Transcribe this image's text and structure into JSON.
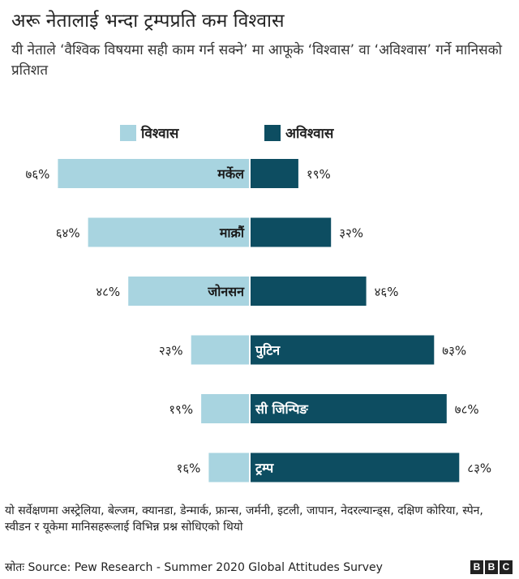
{
  "title": "अरू नेतालाई भन्दा ट्रम्पप्रति कम विश्वास",
  "subtitle": "यी नेताले  ‘वैश्विक विषयमा सही काम गर्न सक्ने’ मा आफूके ‘विश्वास’ वा ‘अविश्वास’ गर्ने मानिसको प्रतिशत",
  "legend": {
    "trust": "विश्वास",
    "distrust": "अविश्वास"
  },
  "colors": {
    "trust": "#a8d4e0",
    "distrust": "#0d4d61",
    "bbc": "#222222"
  },
  "chart_data": {
    "type": "bar",
    "orientation": "horizontal-diverging",
    "categories": [
      "मर्केल",
      "माक्रौं",
      "जोनसन",
      "पुटिन",
      "सी जिन्पिङ",
      "ट्रम्प"
    ],
    "series": [
      {
        "name": "विश्वास",
        "values": [
          76,
          64,
          48,
          23,
          19,
          16
        ],
        "labels": [
          "७६%",
          "६४%",
          "४८%",
          "२३%",
          "१९%",
          "१६%"
        ]
      },
      {
        "name": "अविश्वास",
        "values": [
          19,
          32,
          46,
          73,
          78,
          83
        ],
        "labels": [
          "१९%",
          "३२%",
          "४६%",
          "७३%",
          "७८%",
          "८३%"
        ]
      }
    ],
    "category_label_side": [
      "left",
      "left",
      "left",
      "right",
      "right",
      "right"
    ],
    "xlim": [
      0,
      100
    ]
  },
  "note": "यो सर्वेक्षणमा अस्ट्रेलिया, बेल्जम, क्यानडा, डेन्मार्क, फ्रान्स, जर्मनी, इटली, जापान, नेदरल्यान्ड्स, दक्षिण कोरिया, स्पेन, स्वीडन र यूकेमा मानिसहरूलाई विभिन्न प्रश्न सोधिएको थियो",
  "source": "स्रोतः  Source: Pew Research - Summer 2020 Global Attitudes Survey",
  "logo": [
    "B",
    "B",
    "C"
  ]
}
